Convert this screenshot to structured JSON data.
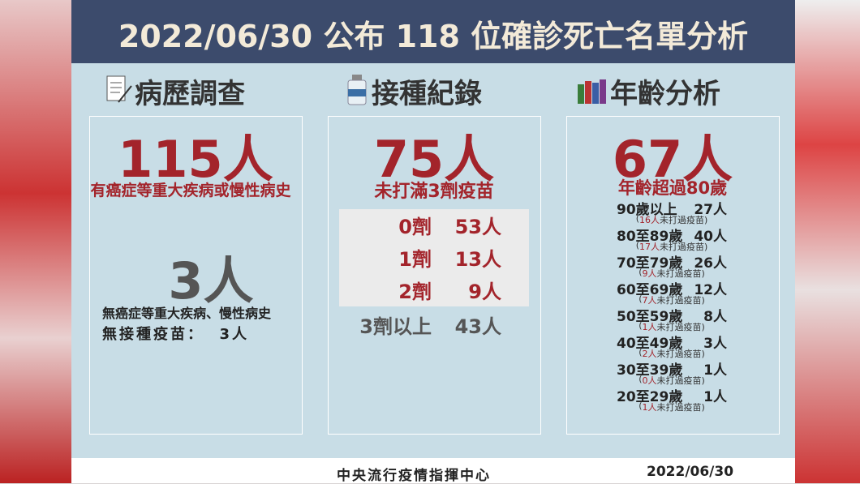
{
  "header": {
    "title": "2022/06/30 公布 118 位確診死亡名單分析"
  },
  "panels": [
    {
      "heading": "病歷調查",
      "main": "115人",
      "main_caption": "有癌症等重大疾病或慢性病史",
      "second": "3人",
      "second_caption": "無癌症等重大疾病、慢性病史",
      "second_note": "無接種疫苗：  3人"
    },
    {
      "heading": "接種紀錄",
      "main": "75人",
      "main_caption": "未打滿3劑疫苗",
      "rows": [
        [
          "0劑",
          "53人"
        ],
        [
          "1劑",
          "13人"
        ],
        [
          "2劑",
          "9人"
        ]
      ],
      "extra": [
        "3劑以上",
        "43人"
      ]
    },
    {
      "heading": "年齡分析",
      "main": "67人",
      "main_caption": "年齡超過80歲",
      "rows": [
        {
          "label": "90歲以上",
          "count": "27人",
          "note": [
            "(",
            "16人",
            "未打過疫苗)"
          ]
        },
        {
          "label": "80至89歲",
          "count": "40人",
          "note": [
            "(",
            "17人",
            "未打過疫苗)"
          ]
        },
        {
          "label": "70至79歲",
          "count": "26人",
          "note": [
            "(",
            "9人",
            "未打過疫苗)"
          ]
        },
        {
          "label": "60至69歲",
          "count": "12人",
          "note": [
            "(",
            "7人",
            "未打過疫苗)"
          ]
        },
        {
          "label": "50至59歲",
          "count": "8人",
          "note": [
            "(",
            "1人",
            "未打過疫苗)"
          ]
        },
        {
          "label": "40至49歲",
          "count": "3人",
          "note": [
            "(",
            "2人",
            "未打過疫苗)"
          ]
        },
        {
          "label": "30至39歲",
          "count": "1人",
          "note": [
            "(",
            "0人",
            "未打過疫苗)"
          ]
        },
        {
          "label": "20至29歲",
          "count": "1人",
          "note": [
            "(",
            "1人",
            "未打過疫苗)"
          ]
        }
      ]
    }
  ],
  "footer": {
    "source": "中央流行疫情指揮中心",
    "date": "2022/06/30"
  }
}
